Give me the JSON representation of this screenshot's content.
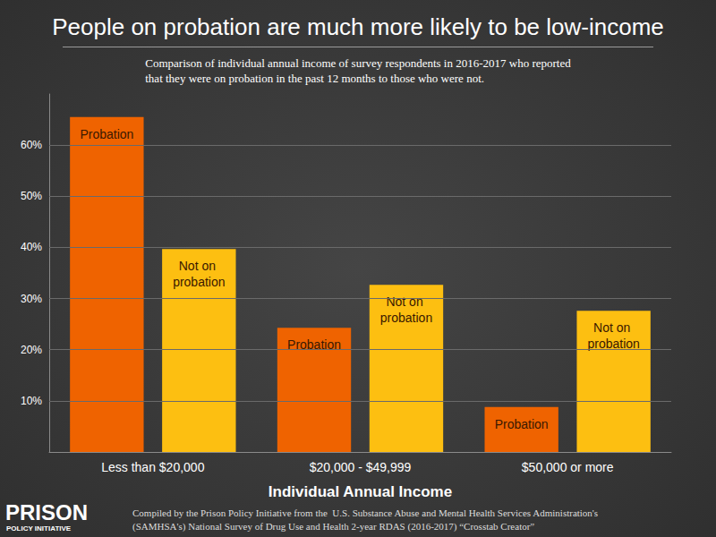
{
  "chart_data": {
    "type": "bar",
    "title": "People on probation are much more likely to be low-income",
    "subtitle": "Comparison of individual annual income of survey respondents in 2016-2017 who reported\nthat they were on probation in the past 12 months to those who were not.",
    "x_label": "Individual Annual Income",
    "categories": [
      "Less than $20,000",
      "$20,000 - $49,999",
      "$50,000 or more"
    ],
    "series": [
      {
        "name": "Probation",
        "color": "#ef6300",
        "values": [
          65.5,
          24.3,
          8.8
        ]
      },
      {
        "name": "Not on probation",
        "color": "#fdbf11",
        "values": [
          39.7,
          32.7,
          27.6
        ]
      }
    ],
    "ylim": [
      0,
      70
    ],
    "yticks": [
      {
        "value": 10,
        "label": "10%"
      },
      {
        "value": 20,
        "label": "20%"
      },
      {
        "value": 30,
        "label": "30%"
      },
      {
        "value": 40,
        "label": "40%"
      },
      {
        "value": 50,
        "label": "50%"
      },
      {
        "value": 60,
        "label": "60%"
      }
    ],
    "grid": true,
    "source": "Compiled by the Prison Policy Initiative from the  U.S. Substance Abuse and Mental Health Services Administration's\n(SAMHSA's) National Survey of Drug Use and Health 2-year RDAS (2016-2017) “Crosstab Creator”",
    "logo": [
      "PRISON",
      "POLICY INITIATIVE"
    ]
  }
}
